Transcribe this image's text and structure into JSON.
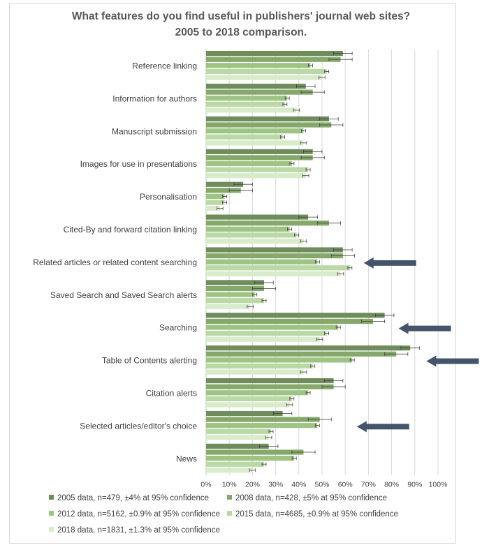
{
  "chart_data": {
    "type": "bar",
    "orientation": "horizontal",
    "title": "What features do you find useful in publishers' journal web sites?",
    "subtitle": "2005 to 2018 comparison.",
    "categories": [
      "Reference linking",
      "Information for authors",
      "Manuscript submission",
      "Images for use in  presentations",
      "Personalisation",
      "Cited-By and forward citation linking",
      "Related articles or related content searching",
      "Saved Search and Saved Search alerts",
      "Searching",
      "Table of Contents alerting",
      "Citation alerts",
      "Selected articles/editor's choice",
      "News"
    ],
    "series": [
      {
        "name": "2005 data, n=479, ±4% at 95% confidence",
        "color": "#6e8c5c",
        "error": 4,
        "values": [
          59,
          43,
          53,
          46,
          16,
          44,
          59,
          25,
          77,
          88,
          55,
          33,
          27
        ]
      },
      {
        "name": "2008 data, n=428, ±5% at 95% confidence",
        "color": "#86a96b",
        "error": 5,
        "values": [
          58,
          46,
          54,
          46,
          15,
          53,
          59,
          25,
          72,
          82,
          55,
          49,
          42
        ]
      },
      {
        "name": "2012 data, n=5162, ±0.9% at 95% confidence",
        "color": "#9ec484",
        "error": 0.9,
        "values": [
          45,
          35,
          42,
          37,
          8,
          36,
          48,
          21,
          57,
          63,
          44,
          48,
          38
        ]
      },
      {
        "name": "2015 data, n=4685, ±0.9% at 95% confidence",
        "color": "#bad9a6",
        "error": 0.9,
        "values": [
          52,
          34,
          33,
          44,
          8,
          39,
          62,
          25,
          52,
          46,
          37,
          28,
          25
        ]
      },
      {
        "name": "2018 data, n=1831, ±1.3% at 95% confidence",
        "color": "#d8eccb",
        "error": 1.3,
        "values": [
          50,
          39,
          42,
          43,
          6,
          42,
          58,
          19,
          49,
          42,
          36,
          27,
          20
        ]
      }
    ],
    "x_ticks": [
      "0%",
      "10%",
      "20%",
      "30%",
      "40%",
      "50%",
      "60%",
      "70%",
      "80%",
      "90%",
      "100%"
    ],
    "xlim": [
      0,
      100
    ],
    "grid": "vertical",
    "legend_position": "bottom",
    "arrows": [
      {
        "category": "Related articles or related content searching",
        "value": 68
      },
      {
        "category": "Searching",
        "value": 83
      },
      {
        "category": "Table of Contents alerting",
        "value": 95
      },
      {
        "category": "Selected articles/editor's choice",
        "value": 65
      }
    ],
    "arrow_color": "#44546a"
  }
}
